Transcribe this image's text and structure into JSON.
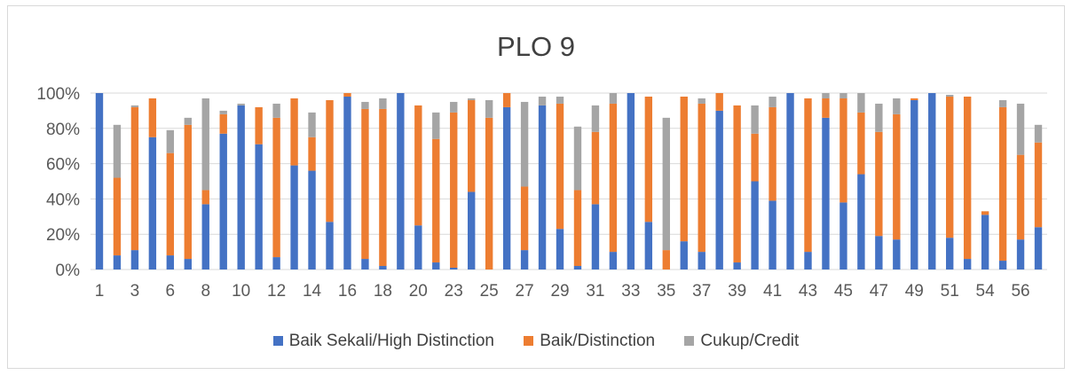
{
  "chart_data": {
    "type": "bar",
    "stacked": true,
    "title": "PLO 9",
    "ylim": [
      0,
      100
    ],
    "yticks": [
      0,
      20,
      40,
      60,
      80,
      100
    ],
    "ytick_labels": [
      "0%",
      "20%",
      "40%",
      "60%",
      "80%",
      "100%"
    ],
    "grid": true,
    "legend_position": "bottom",
    "categories": [
      "1",
      "2",
      "3",
      "5",
      "6",
      "7",
      "8",
      "9",
      "10",
      "11",
      "12",
      "13",
      "14",
      "15",
      "16",
      "17",
      "18",
      "19",
      "20",
      "21",
      "23",
      "24",
      "25",
      "26",
      "27",
      "28",
      "29",
      "30",
      "31",
      "32",
      "33",
      "34",
      "35",
      "36",
      "37",
      "38",
      "39",
      "40",
      "41",
      "42",
      "43",
      "44",
      "45",
      "46",
      "47",
      "48",
      "49",
      "50",
      "51",
      "52",
      "54",
      "55",
      "56",
      "57"
    ],
    "x_label_indices": [
      0,
      2,
      4,
      6,
      8,
      10,
      12,
      14,
      16,
      18,
      20,
      22,
      24,
      26,
      28,
      30,
      32,
      34,
      36,
      38,
      40,
      42,
      44,
      46,
      48,
      50,
      52
    ],
    "series": [
      {
        "name": "Baik Sekali/High Distinction",
        "color": "#4472c4",
        "values": [
          100,
          8,
          11,
          75,
          8,
          6,
          37,
          77,
          93,
          71,
          7,
          59,
          56,
          27,
          98,
          6,
          2,
          100,
          25,
          4,
          1,
          44,
          0,
          92,
          11,
          93,
          23,
          2,
          37,
          10,
          100,
          27,
          0,
          16,
          10,
          90,
          4,
          50,
          39,
          100,
          10,
          86,
          38,
          54,
          19,
          17,
          96,
          100,
          18,
          6,
          31,
          5,
          17,
          24
        ]
      },
      {
        "name": "Baik/Distinction",
        "color": "#ed7d31",
        "values": [
          0,
          44,
          81,
          22,
          58,
          76,
          8,
          11,
          0,
          21,
          79,
          38,
          19,
          69,
          2,
          85,
          89,
          0,
          68,
          70,
          88,
          52,
          86,
          8,
          36,
          0,
          71,
          43,
          41,
          84,
          0,
          71,
          11,
          82,
          84,
          10,
          89,
          27,
          53,
          0,
          87,
          11,
          59,
          35,
          59,
          71,
          1,
          0,
          80,
          92,
          2,
          87,
          48,
          48
        ]
      },
      {
        "name": "Cukup/Credit",
        "color": "#a5a5a5",
        "values": [
          0,
          30,
          1,
          0,
          13,
          4,
          52,
          2,
          1,
          0,
          8,
          0,
          14,
          0,
          0,
          4,
          6,
          0,
          0,
          15,
          6,
          1,
          10,
          0,
          48,
          5,
          4,
          36,
          15,
          6,
          0,
          0,
          75,
          0,
          3,
          0,
          0,
          16,
          6,
          0,
          0,
          3,
          3,
          11,
          16,
          9,
          0,
          0,
          1,
          0,
          0,
          4,
          29,
          10
        ]
      }
    ]
  }
}
